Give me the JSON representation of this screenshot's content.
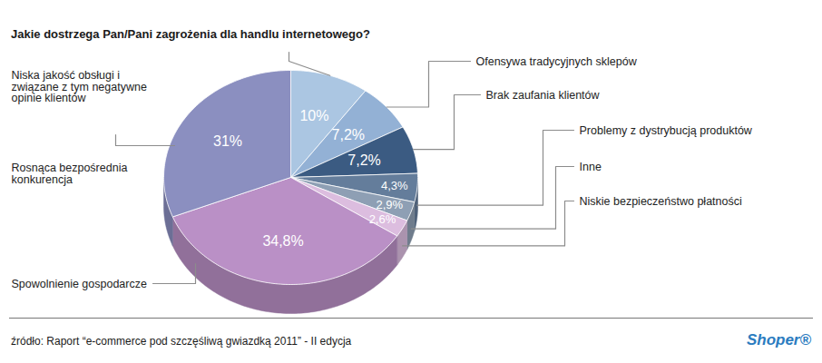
{
  "chart_data": {
    "type": "pie",
    "title": "Jakie dostrzega Pan/Pani zagrożenia dla handlu internetowego?",
    "categories": [
      "Niska jakość obsługi i związane z tym negatywne opinie klientów",
      "Ofensywa tradycyjnych sklepów",
      "Brak zaufania klientów",
      "Problemy z dystrybucją produktów",
      "Inne",
      "Niskie bezpieczeństwo płatności",
      "Spowolnienie gospodarcze",
      "Rosnąca bezpośrednia konkurencja"
    ],
    "values": [
      10,
      7.2,
      7.2,
      4.3,
      2.9,
      2.6,
      34.8,
      31
    ],
    "value_labels": [
      "10%",
      "7,2%",
      "7,2%",
      "4,3%",
      "2,9%",
      "2,6%",
      "34,8%",
      "31%"
    ],
    "colors": [
      "#abc6e2",
      "#93b1d5",
      "#3b5b82",
      "#647d9b",
      "#8e9fb4",
      "#dcbddf",
      "#ba90c6",
      "#8b8fc0"
    ],
    "data_labels": true,
    "source": "źródło: Raport “e-commerce pod szczęśliwą gwiazdką 2011” - II edycja",
    "logo": "Shoper®"
  }
}
